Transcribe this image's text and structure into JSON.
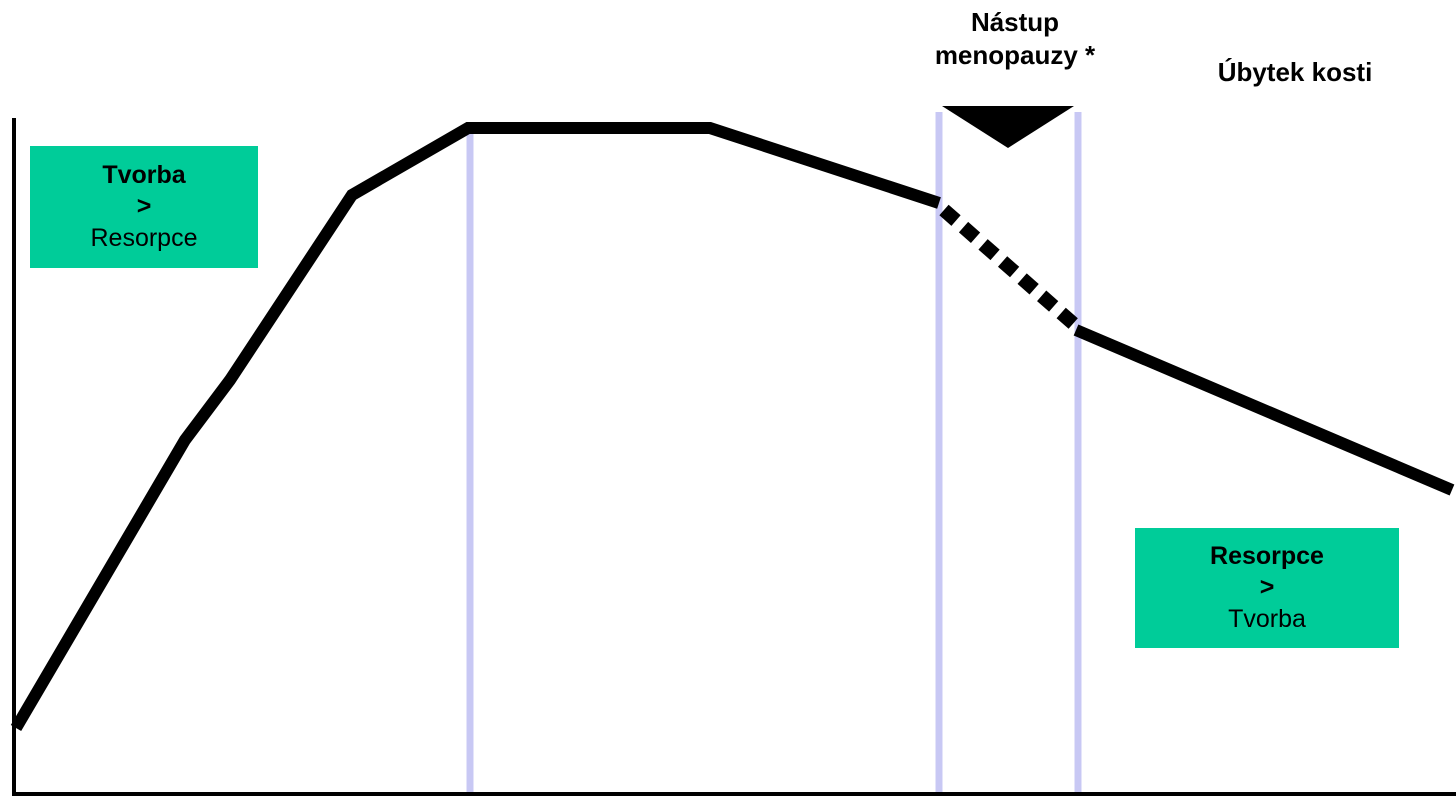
{
  "colors": {
    "curve": "#000000",
    "axis": "#000000",
    "phase_divider": "#c8c8f4",
    "box_fill": "#00cc99",
    "marker": "#000000"
  },
  "labels": {
    "menopause_line1": "Nástup",
    "menopause_line2": "menopauzy *",
    "bone_loss": "Úbytek kosti"
  },
  "box_formation": {
    "line1": "Tvorba",
    "line2": ">",
    "line3": "Resorpce"
  },
  "box_resorption": {
    "line1": "Resorpce",
    "line2": ">",
    "line3": "Tvorba"
  }
}
